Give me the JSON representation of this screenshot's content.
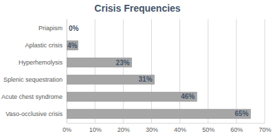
{
  "chart_data": {
    "type": "bar",
    "orientation": "horizontal",
    "title": "Crisis Frequencies",
    "categories": [
      "Priapism",
      "Aplastic crisis",
      "Hyperhemolysis",
      "Splenic sequestration",
      "Acute chest syndrome",
      "Vaso-occlusive crisis"
    ],
    "values": [
      0,
      4,
      23,
      31,
      46,
      65
    ],
    "value_labels": [
      "0%",
      "4%",
      "23%",
      "31%",
      "46%",
      "65%"
    ],
    "color": "#a6a6a6",
    "xlim": [
      0,
      70
    ],
    "xticks": [
      {
        "value": 0,
        "label": "0%"
      },
      {
        "value": 10,
        "label": "10%"
      },
      {
        "value": 20,
        "label": "20%"
      },
      {
        "value": 30,
        "label": "30%"
      },
      {
        "value": 40,
        "label": "40%"
      },
      {
        "value": 50,
        "label": "50%"
      },
      {
        "value": 60,
        "label": "60%"
      },
      {
        "value": 70,
        "label": "70%"
      }
    ],
    "grid": true,
    "data_labels": true
  }
}
